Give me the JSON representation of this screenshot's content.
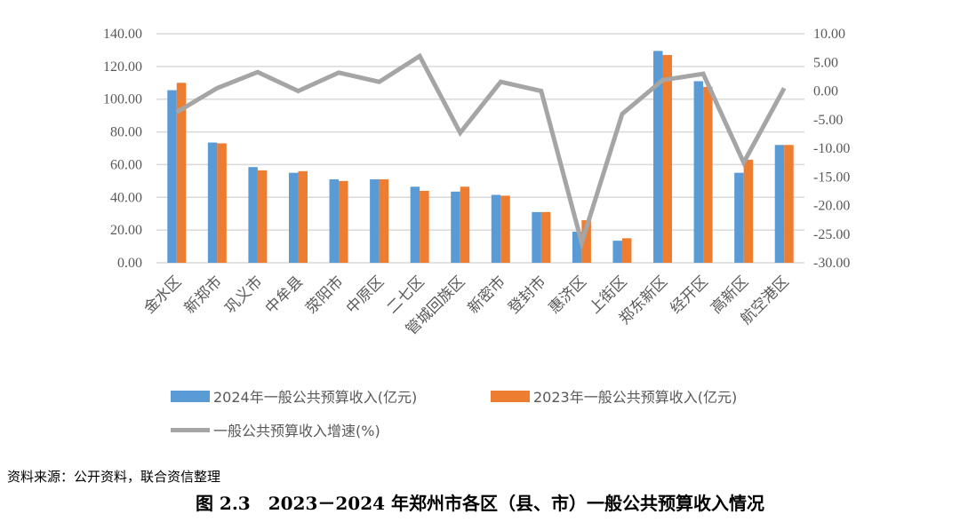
{
  "chart_data": {
    "type": "bar",
    "categories": [
      "金水区",
      "新郑市",
      "巩义市",
      "中牟县",
      "荥阳市",
      "中原区",
      "二七区",
      "管城回族区",
      "新密市",
      "登封市",
      "惠济区",
      "上街区",
      "郑东新区",
      "经开区",
      "高新区",
      "航空港区"
    ],
    "series": [
      {
        "name": "2024年一般公共预算收入(亿元)",
        "type": "bar",
        "axis": "left",
        "color": "#5B9BD5",
        "values": [
          105.5,
          73.5,
          58.5,
          55,
          51,
          51,
          46.5,
          43.5,
          41.5,
          31,
          19,
          13.5,
          129.5,
          111,
          55,
          72
        ]
      },
      {
        "name": "2023年一般公共预算收入(亿元)",
        "type": "bar",
        "axis": "left",
        "color": "#ED7D31",
        "values": [
          110,
          73,
          56.5,
          56,
          50,
          51,
          44,
          46.5,
          41,
          31,
          26,
          15,
          127,
          107.5,
          63,
          72
        ]
      },
      {
        "name": "一般公共预算收入增速(%)",
        "type": "line",
        "axis": "right",
        "color": "#A5A5A5",
        "values": [
          -3.7,
          0.5,
          3.3,
          0.0,
          3.2,
          1.6,
          6.1,
          -7.3,
          1.6,
          0.0,
          -26.5,
          -4.0,
          1.9,
          3.0,
          -12.5,
          0.5
        ]
      }
    ],
    "left_axis": {
      "range": [
        0,
        140
      ],
      "ticks": [
        "0.00",
        "20.00",
        "40.00",
        "60.00",
        "80.00",
        "100.00",
        "120.00",
        "140.00"
      ]
    },
    "right_axis": {
      "range": [
        -30,
        10
      ],
      "ticks": [
        "-30.00",
        "-25.00",
        "-20.00",
        "-15.00",
        "-10.00",
        "-5.00",
        "0.00",
        "5.00",
        "10.00"
      ]
    },
    "grid": true,
    "legend_position": "bottom"
  },
  "source": "资料来源：公开资料，联合资信整理",
  "caption": "图 2.3　2023－2024 年郑州市各区（县、市）一般公共预算收入情况"
}
